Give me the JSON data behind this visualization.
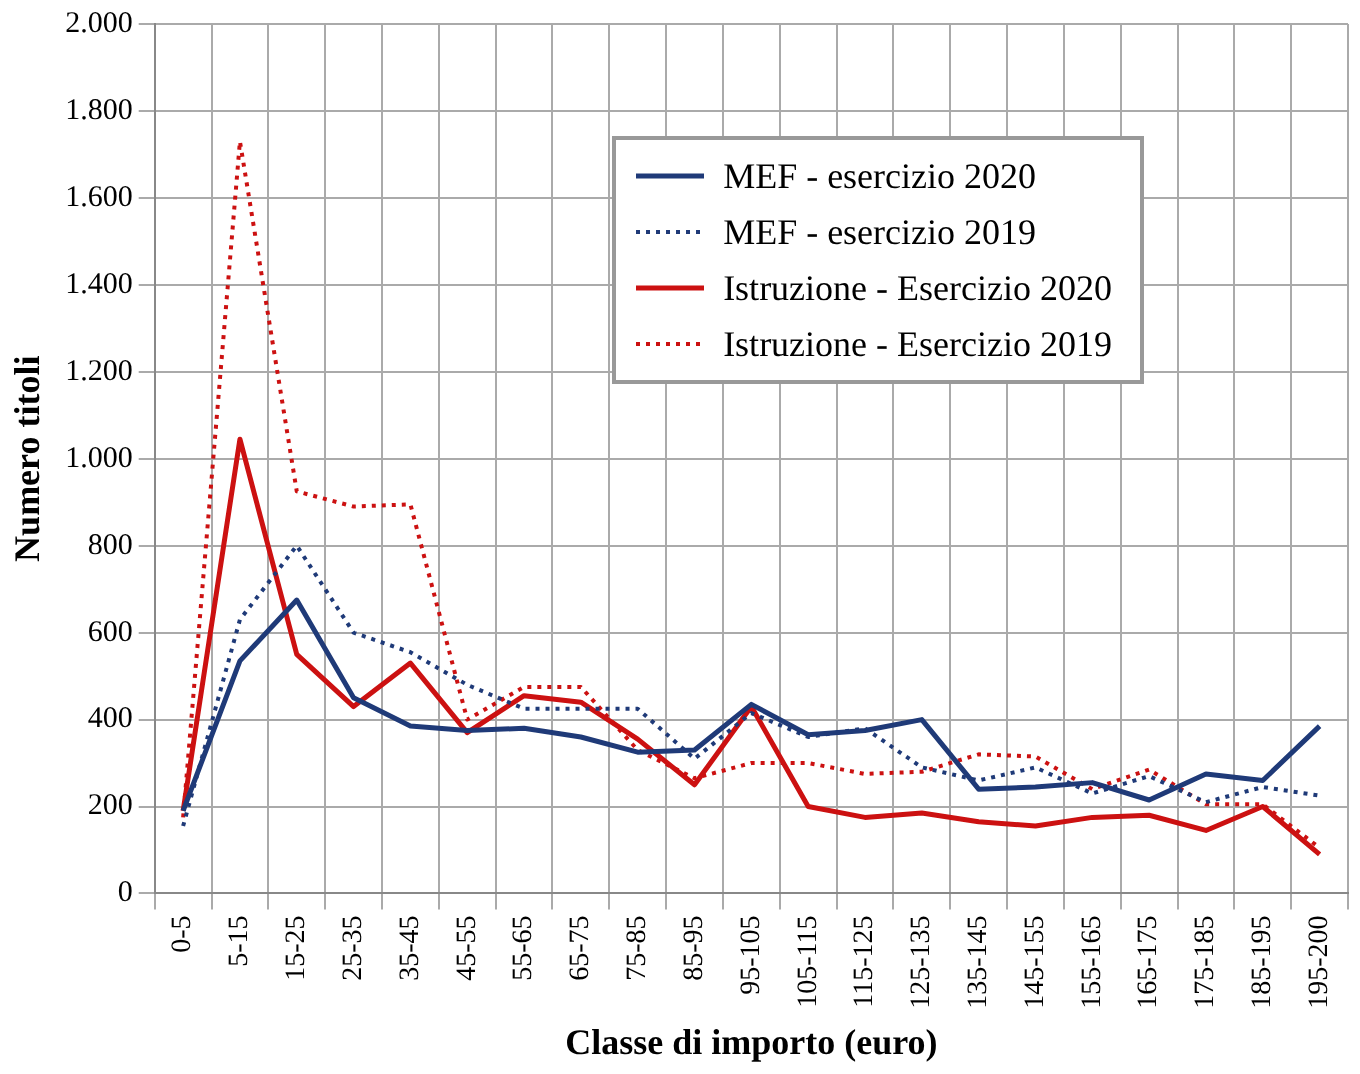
{
  "chart_data": {
    "type": "line",
    "xlabel": "Classe di importo (euro)",
    "ylabel": "Numero titoli",
    "categories": [
      "0-5",
      "5-15",
      "15-25",
      "25-35",
      "35-45",
      "45-55",
      "55-65",
      "65-75",
      "75-85",
      "85-95",
      "95-105",
      "105-115",
      "115-125",
      "125-135",
      "135-145",
      "145-155",
      "155-165",
      "165-175",
      "175-185",
      "185-195",
      "195-200"
    ],
    "series": [
      {
        "name": "MEF - esercizio 2020",
        "color": "#1f3a78",
        "line_style": "solid",
        "values": [
          190,
          535,
          675,
          450,
          385,
          375,
          380,
          360,
          325,
          330,
          435,
          365,
          375,
          400,
          240,
          245,
          255,
          215,
          275,
          260,
          385
        ]
      },
      {
        "name": "MEF - esercizio 2019",
        "color": "#1f3a78",
        "line_style": "dotted",
        "values": [
          155,
          630,
          800,
          600,
          555,
          480,
          425,
          425,
          425,
          310,
          415,
          360,
          380,
          290,
          260,
          290,
          230,
          270,
          210,
          245,
          225
        ]
      },
      {
        "name": "Istruzione - Esercizio 2020",
        "color": "#cc1111",
        "line_style": "solid",
        "values": [
          190,
          1045,
          550,
          430,
          530,
          370,
          455,
          440,
          355,
          250,
          430,
          200,
          175,
          185,
          165,
          155,
          175,
          180,
          145,
          200,
          90
        ]
      },
      {
        "name": "Istruzione - Esercizio 2019",
        "color": "#cc1111",
        "line_style": "dotted",
        "values": [
          175,
          1730,
          925,
          890,
          895,
          400,
          475,
          475,
          330,
          265,
          300,
          300,
          275,
          280,
          320,
          315,
          240,
          285,
          205,
          205,
          105
        ]
      }
    ],
    "ylim": [
      0,
      2000
    ],
    "yticks": [
      0,
      {
        "value": 200,
        "label": "200"
      },
      {
        "value": 400,
        "label": "400"
      },
      {
        "value": 600,
        "label": "600"
      },
      {
        "value": 800,
        "label": "800"
      },
      {
        "value": 1000,
        "label": "1.000"
      },
      {
        "value": 1200,
        "label": "1.200"
      },
      {
        "value": 1400,
        "label": "1.400"
      },
      {
        "value": 1600,
        "label": "1.600"
      },
      {
        "value": 1800,
        "label": "1.800"
      },
      {
        "value": 2000,
        "label": "2.000"
      }
    ],
    "grid": true,
    "legend": "top right",
    "marker": "none"
  }
}
